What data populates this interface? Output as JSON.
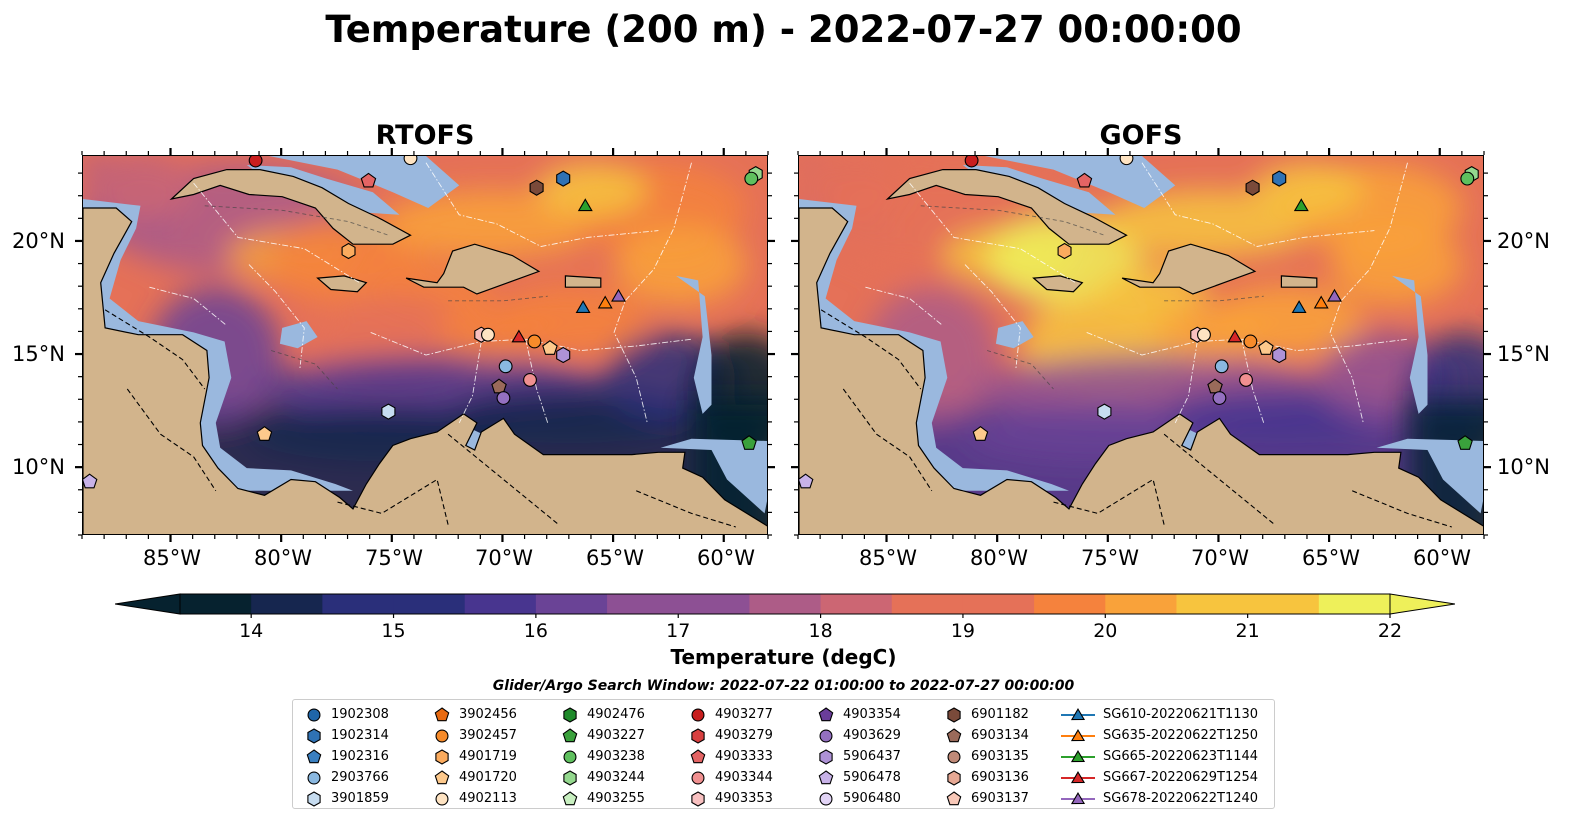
{
  "title": "Temperature (200 m) - 2022-07-27 00:00:00",
  "panels": [
    {
      "title": "RTOFS"
    },
    {
      "title": "GOFS"
    }
  ],
  "lat_labels": [
    "20°N",
    "15°N",
    "10°N"
  ],
  "lon_labels": [
    "85°W",
    "80°W",
    "75°W",
    "70°W",
    "65°W",
    "60°W"
  ],
  "colorbar": {
    "label": "Temperature (degC)",
    "ticks": [
      "14",
      "15",
      "16",
      "17",
      "18",
      "19",
      "20",
      "21",
      "22"
    ],
    "min": 13.5,
    "max": 22.0,
    "colormap": [
      "#06222f",
      "#16264f",
      "#2a2f7a",
      "#48358f",
      "#6a4396",
      "#8d5094",
      "#ad5c87",
      "#cc6673",
      "#e57158",
      "#f5823d",
      "#f9a23a",
      "#f7c43e",
      "#eef05a"
    ],
    "extend": "both"
  },
  "search_window": "Glider/Argo Search Window: 2022-07-22 01:00:00 to 2022-07-27 00:00:00",
  "colors": {
    "land": "#d2b48c",
    "shallow": "#9ab8de",
    "deep": "#06222f"
  },
  "legend": [
    [
      {
        "label": "1902308",
        "marker": "circle",
        "color": "#1f66a8"
      },
      {
        "label": "1902314",
        "marker": "hexagon",
        "color": "#2f72b4"
      },
      {
        "label": "1902316",
        "marker": "pentagon",
        "color": "#3a7fc0"
      },
      {
        "label": "2903766",
        "marker": "circle",
        "color": "#8ab8e0"
      },
      {
        "label": "3901859",
        "marker": "hexagon",
        "color": "#c6dcf0"
      }
    ],
    [
      {
        "label": "3902456",
        "marker": "pentagon",
        "color": "#e86a10"
      },
      {
        "label": "3902457",
        "marker": "circle",
        "color": "#f78b2a"
      },
      {
        "label": "4901719",
        "marker": "hexagon",
        "color": "#fbab5e"
      },
      {
        "label": "4901720",
        "marker": "pentagon",
        "color": "#fdc98c"
      },
      {
        "label": "4902113",
        "marker": "circle",
        "color": "#fee3c2"
      }
    ],
    [
      {
        "label": "4902476",
        "marker": "hexagon",
        "color": "#1f8a2a"
      },
      {
        "label": "4903227",
        "marker": "pentagon",
        "color": "#3aa13c"
      },
      {
        "label": "4903238",
        "marker": "circle",
        "color": "#5fc05e"
      },
      {
        "label": "4903244",
        "marker": "hexagon",
        "color": "#94d88e"
      },
      {
        "label": "4903255",
        "marker": "pentagon",
        "color": "#c8efc0"
      }
    ],
    [
      {
        "label": "4903277",
        "marker": "circle",
        "color": "#c81e1e"
      },
      {
        "label": "4903279",
        "marker": "hexagon",
        "color": "#d84040"
      },
      {
        "label": "4903333",
        "marker": "pentagon",
        "color": "#e46464"
      },
      {
        "label": "4903344",
        "marker": "circle",
        "color": "#f09090"
      },
      {
        "label": "4903353",
        "marker": "hexagon",
        "color": "#f8c0c0"
      }
    ],
    [
      {
        "label": "4903354",
        "marker": "pentagon",
        "color": "#6a3d9a"
      },
      {
        "label": "4903629",
        "marker": "circle",
        "color": "#9470c0"
      },
      {
        "label": "5906437",
        "marker": "hexagon",
        "color": "#ae92d6"
      },
      {
        "label": "5906478",
        "marker": "pentagon",
        "color": "#c8b2e8"
      },
      {
        "label": "5906480",
        "marker": "circle",
        "color": "#e2d4f6"
      }
    ],
    [
      {
        "label": "6901182",
        "marker": "hexagon",
        "color": "#7a4a3a"
      },
      {
        "label": "6903134",
        "marker": "pentagon",
        "color": "#9a6a5a"
      },
      {
        "label": "6903135",
        "marker": "circle",
        "color": "#c08a78"
      },
      {
        "label": "6903136",
        "marker": "hexagon",
        "color": "#e6a894"
      },
      {
        "label": "6903137",
        "marker": "pentagon",
        "color": "#f8c8b8"
      }
    ],
    [
      {
        "label": "SG610-20220621T1130",
        "marker": "triangle-line",
        "color": "#1f77b4"
      },
      {
        "label": "SG635-20220622T1250",
        "marker": "triangle-line",
        "color": "#ff7f0e"
      },
      {
        "label": "SG665-20220623T1144",
        "marker": "triangle-line",
        "color": "#2ca02c"
      },
      {
        "label": "SG667-20220629T1254",
        "marker": "triangle-line",
        "color": "#d62728"
      },
      {
        "label": "SG678-20220622T1240",
        "marker": "triangle-line",
        "color": "#9467bd"
      }
    ]
  ],
  "markers": [
    {
      "lon": -81.2,
      "lat": 23.6,
      "marker": "circle",
      "color": "#c81e1e"
    },
    {
      "lon": -74.2,
      "lat": 23.7,
      "marker": "circle",
      "color": "#fee3c2"
    },
    {
      "lon": -76.1,
      "lat": 22.7,
      "marker": "pentagon",
      "color": "#e46464"
    },
    {
      "lon": -68.5,
      "lat": 22.4,
      "marker": "hexagon",
      "color": "#7a4a3a"
    },
    {
      "lon": -67.3,
      "lat": 22.8,
      "marker": "hexagon",
      "color": "#2f72b4"
    },
    {
      "lon": -66.3,
      "lat": 21.6,
      "marker": "triangle",
      "color": "#2ca02c"
    },
    {
      "lon": -58.6,
      "lat": 23.0,
      "marker": "hexagon",
      "color": "#94d88e"
    },
    {
      "lon": -58.8,
      "lat": 22.8,
      "marker": "circle",
      "color": "#5fc05e"
    },
    {
      "lon": -77.0,
      "lat": 19.6,
      "marker": "hexagon",
      "color": "#fbab5e"
    },
    {
      "lon": -66.4,
      "lat": 17.1,
      "marker": "triangle",
      "color": "#1f77b4"
    },
    {
      "lon": -65.4,
      "lat": 17.3,
      "marker": "triangle",
      "color": "#ff7f0e"
    },
    {
      "lon": -64.8,
      "lat": 17.6,
      "marker": "triangle",
      "color": "#9467bd"
    },
    {
      "lon": -71.0,
      "lat": 15.9,
      "marker": "hexagon",
      "color": "#f8c0c0"
    },
    {
      "lon": -70.7,
      "lat": 15.9,
      "marker": "circle",
      "color": "#fee3c2"
    },
    {
      "lon": -69.3,
      "lat": 15.8,
      "marker": "triangle",
      "color": "#d62728"
    },
    {
      "lon": -68.6,
      "lat": 15.6,
      "marker": "circle",
      "color": "#f78b2a"
    },
    {
      "lon": -67.9,
      "lat": 15.3,
      "marker": "pentagon",
      "color": "#fdc98c"
    },
    {
      "lon": -67.3,
      "lat": 15.0,
      "marker": "hexagon",
      "color": "#ae92d6"
    },
    {
      "lon": -69.9,
      "lat": 14.5,
      "marker": "circle",
      "color": "#8ab8e0"
    },
    {
      "lon": -70.2,
      "lat": 13.6,
      "marker": "pentagon",
      "color": "#9a6a5a"
    },
    {
      "lon": -68.8,
      "lat": 13.9,
      "marker": "circle",
      "color": "#f09090"
    },
    {
      "lon": -70.0,
      "lat": 13.1,
      "marker": "circle",
      "color": "#9470c0"
    },
    {
      "lon": -75.2,
      "lat": 12.5,
      "marker": "hexagon",
      "color": "#c6dcf0"
    },
    {
      "lon": -80.8,
      "lat": 11.5,
      "marker": "pentagon",
      "color": "#fdc98c"
    },
    {
      "lon": -58.9,
      "lat": 11.1,
      "marker": "pentagon",
      "color": "#3aa13c"
    },
    {
      "lon": -88.7,
      "lat": 9.4,
      "marker": "pentagon",
      "color": "#c8b2e8"
    }
  ],
  "map_extent": {
    "lon_min": -89.0,
    "lon_max": -58.0,
    "lat_min": 7.0,
    "lat_max": 23.8
  }
}
